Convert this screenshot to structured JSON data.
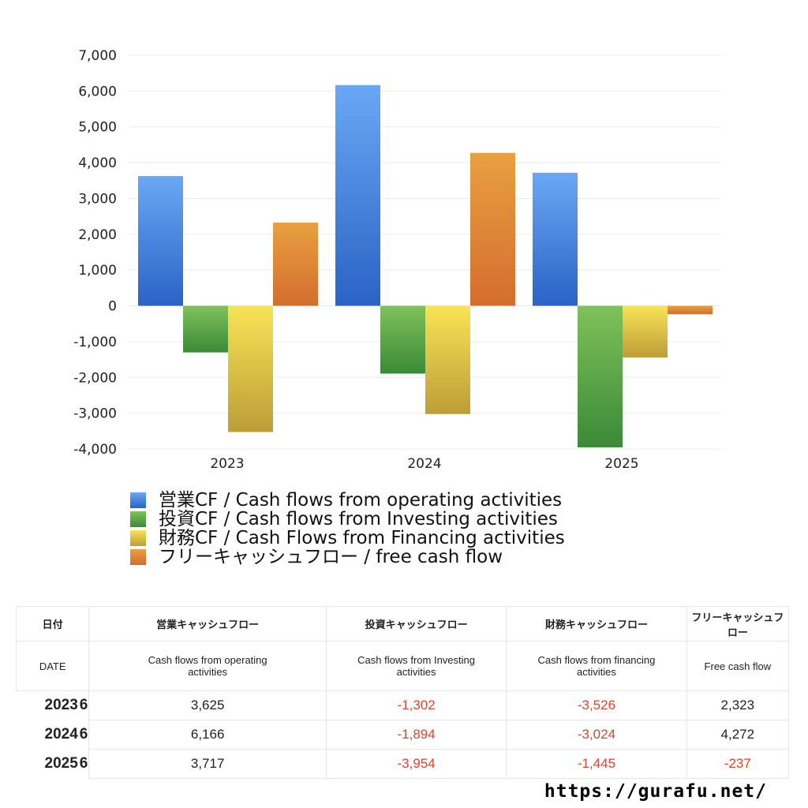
{
  "chart_data": {
    "type": "bar",
    "categories": [
      "2023",
      "2024",
      "2025"
    ],
    "ylim": [
      -4000,
      7000
    ],
    "yticks": [
      7000,
      6000,
      5000,
      4000,
      3000,
      2000,
      1000,
      0,
      -1000,
      -2000,
      -3000,
      -4000
    ],
    "ytick_labels": [
      "7,000",
      "6,000",
      "5,000",
      "4,000",
      "3,000",
      "2,000",
      "1,000",
      "0",
      "-1,000",
      "-2,000",
      "-3,000",
      "-4,000"
    ],
    "grid": true,
    "legend_placement": "bottom",
    "series": [
      {
        "name": "営業CF / Cash flows from operating activities",
        "values": [
          3625,
          6166,
          3717
        ],
        "color_top": "#69a8f5",
        "color_bottom": "#2a63c4"
      },
      {
        "name": "投資CF / Cash flows from Investing activities",
        "values": [
          -1302,
          -1894,
          -3954
        ],
        "color_top": "#80c15a",
        "color_bottom": "#3a8a37"
      },
      {
        "name": "財務CF / Cash Flows from Financing activities",
        "values": [
          -3526,
          -3024,
          -1445
        ],
        "color_top": "#f7e455",
        "color_bottom": "#bd9d38"
      },
      {
        "name": "フリーキャッシュフロー / free cash flow",
        "values": [
          2323,
          4272,
          -237
        ],
        "color_top": "#e8a040",
        "color_bottom": "#d46d2e"
      }
    ]
  },
  "table": {
    "header_jp": [
      "日付",
      "営業キャッシュフロー",
      "投資キャッシュフロー",
      "財務キャッシュフロー",
      "フリーキャッシュフロー"
    ],
    "header_en": [
      "DATE",
      "Cash flows from operating activities",
      "Cash flows from Investing activities",
      "Cash flows from financing activities",
      "Free cash flow"
    ],
    "rows": [
      {
        "year": "2023",
        "month": "6",
        "values": [
          "3,625",
          "-1,302",
          "-3,526",
          "2,323"
        ]
      },
      {
        "year": "2024",
        "month": "6",
        "values": [
          "6,166",
          "-1,894",
          "-3,024",
          "4,272"
        ]
      },
      {
        "year": "2025",
        "month": "6",
        "values": [
          "3,717",
          "-3,954",
          "-1,445",
          "-237"
        ]
      }
    ]
  },
  "footer": {
    "url": "https://gurafu.net/"
  }
}
